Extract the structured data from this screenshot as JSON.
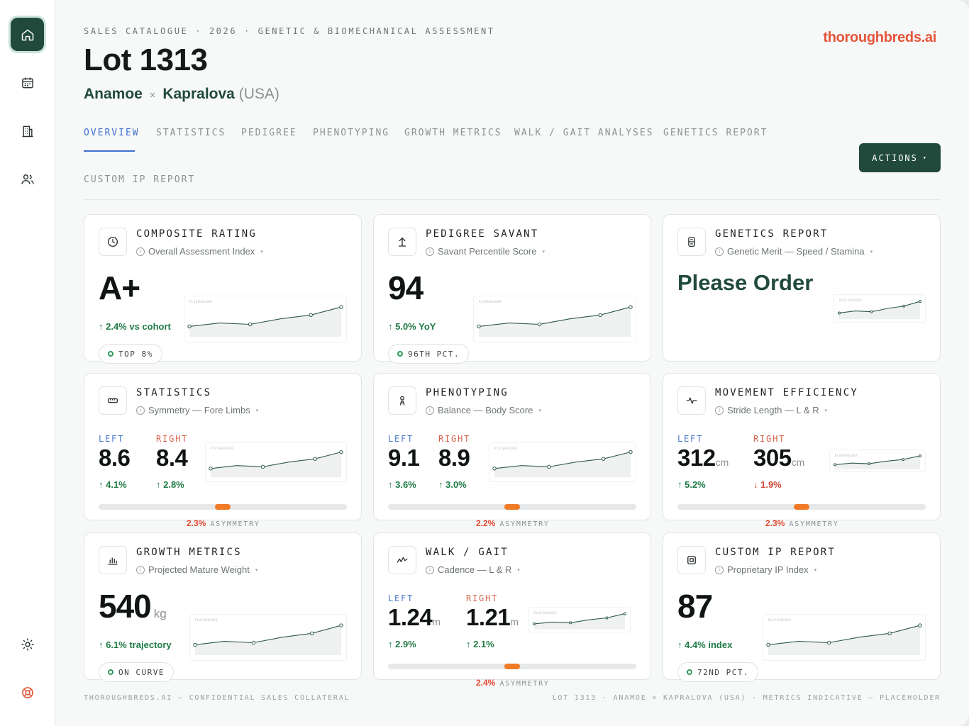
{
  "sidebar": {
    "items": [
      {
        "icon": "home-icon",
        "active": true
      },
      {
        "icon": "calendar-icon",
        "active": false
      },
      {
        "icon": "building-icon",
        "active": false
      },
      {
        "icon": "users-icon",
        "active": false
      }
    ],
    "bottom": [
      {
        "icon": "sun-icon"
      },
      {
        "icon": "lifebuoy-icon"
      }
    ]
  },
  "header": {
    "eyebrow": "SALES CATALOGUE · 2026 · GENETIC & BIOMECHANICAL ASSESSMENT",
    "title": "Lot 1313",
    "sire": "Anamoe",
    "cross": "×",
    "dam": "Kapralova",
    "country": "(USA)",
    "brand": "thoroughbreds.ai",
    "brand_color": "#e4553a"
  },
  "tabs": [
    {
      "label": "OVERVIEW",
      "active": true
    },
    {
      "label": "STATISTICS",
      "active": false
    },
    {
      "label": "PEDIGREE",
      "active": false
    },
    {
      "label": "PHENOTYPING",
      "active": false
    },
    {
      "label": "GROWTH METRICS",
      "active": false
    },
    {
      "label": "WALK / GAIT ANALYSES",
      "active": false
    },
    {
      "label": "GENETICS REPORT",
      "active": false
    },
    {
      "label": "CUSTOM IP REPORT",
      "active": false
    }
  ],
  "actions": {
    "label": "ACTIONS",
    "caret": "▾"
  },
  "cards": {
    "composite": {
      "title": "COMPOSITE RATING",
      "subtitle": "Overall Assessment Index",
      "value": "A+",
      "delta": "↑ 2.4% vs cohort",
      "badge": "TOP 8%",
      "icon": "clock-icon",
      "spark": [
        0.3,
        0.4,
        0.36,
        0.52,
        0.63,
        0.86
      ],
      "placeholder": "PLACEHOLDER"
    },
    "pedigree": {
      "title": "PEDIGREE SAVANT",
      "subtitle": "Savant Percentile Score",
      "value": "94",
      "delta": "↑ 5.0% YoY",
      "badge": "96TH PCT.",
      "icon": "arrow-up-icon",
      "spark": [
        0.3,
        0.4,
        0.36,
        0.52,
        0.63,
        0.86
      ],
      "placeholder": "PLACEHOLDER"
    },
    "genetics": {
      "title": "GENETICS REPORT",
      "subtitle": "Genetic Merit — Speed / Stamina",
      "value": "Please Order",
      "icon": "dna-icon",
      "spark": [
        0.3,
        0.4,
        0.36,
        0.52,
        0.63,
        0.86
      ],
      "placeholder": "PLACEHOLDER"
    },
    "statistics": {
      "title": "STATISTICS",
      "subtitle": "Symmetry — Fore Limbs",
      "icon": "ruler-icon",
      "left_label": "LEFT",
      "left_value": "8.6",
      "left_delta": "↑ 4.1%",
      "right_label": "RIGHT",
      "right_value": "8.4",
      "right_delta": "↑ 2.8%",
      "asym_pct": "2.3%",
      "asym_label": "ASYMMETRY",
      "asym_value": 0.023,
      "spark": [
        0.3,
        0.4,
        0.36,
        0.52,
        0.63,
        0.86
      ],
      "placeholder": "PLACEHOLDER"
    },
    "phenotyping": {
      "title": "PHENOTYPING",
      "subtitle": "Balance — Body Score",
      "icon": "person-icon",
      "left_label": "LEFT",
      "left_value": "9.1",
      "left_delta": "↑ 3.6%",
      "right_label": "RIGHT",
      "right_value": "8.9",
      "right_delta": "↑ 3.0%",
      "asym_pct": "2.2%",
      "asym_label": "ASYMMETRY",
      "asym_value": 0.022,
      "spark": [
        0.3,
        0.4,
        0.36,
        0.52,
        0.63,
        0.86
      ],
      "placeholder": "PLACEHOLDER"
    },
    "movement": {
      "title": "MOVEMENT EFFICIENCY",
      "subtitle": "Stride Length — L & R",
      "icon": "pulse-icon",
      "left_label": "LEFT",
      "left_value": "312",
      "left_unit": "cm",
      "left_delta": "↑ 5.2%",
      "right_label": "RIGHT",
      "right_value": "305",
      "right_unit": "cm",
      "right_delta": "↓ 1.9%",
      "asym_pct": "2.3%",
      "asym_label": "ASYMMETRY",
      "asym_value": 0.023,
      "spark": [
        0.3,
        0.4,
        0.36,
        0.52,
        0.63,
        0.86
      ],
      "placeholder": "PLACEHOLDER"
    },
    "growth": {
      "title": "GROWTH METRICS",
      "subtitle": "Projected Mature Weight",
      "value": "540",
      "unit": "kg",
      "delta": "↑ 6.1% trajectory",
      "badge": "ON CURVE",
      "icon": "bar-chart-icon",
      "spark": [
        0.3,
        0.4,
        0.36,
        0.52,
        0.63,
        0.86
      ],
      "placeholder": "PLACEHOLDER"
    },
    "walk": {
      "title": "WALK / GAIT",
      "subtitle": "Cadence — L & R",
      "icon": "gait-icon",
      "left_label": "LEFT",
      "left_value": "1.24",
      "left_unit": "m",
      "left_delta": "↑ 2.9%",
      "right_label": "RIGHT",
      "right_value": "1.21",
      "right_unit": "m",
      "right_delta": "↑ 2.1%",
      "asym_pct": "2.4%",
      "asym_label": "ASYMMETRY",
      "asym_value": 0.024,
      "spark": [
        0.3,
        0.4,
        0.36,
        0.52,
        0.63,
        0.86
      ],
      "placeholder": "PLACEHOLDER"
    },
    "custom": {
      "title": "CUSTOM IP REPORT",
      "subtitle": "Proprietary IP Index",
      "value": "87",
      "delta": "↑ 4.4% index",
      "badge": "72ND PCT.",
      "icon": "chip-icon",
      "spark": [
        0.3,
        0.4,
        0.36,
        0.52,
        0.63,
        0.86
      ],
      "placeholder": "PLACEHOLDER"
    }
  },
  "footer": {
    "left": "THOROUGHBREDS.AI — CONFIDENTIAL SALES COLLATERAL",
    "right": "LOT 1313 · ANAMOE × KAPRALOVA (USA) · METRICS INDICATIVE — PLACEHOLDER"
  }
}
